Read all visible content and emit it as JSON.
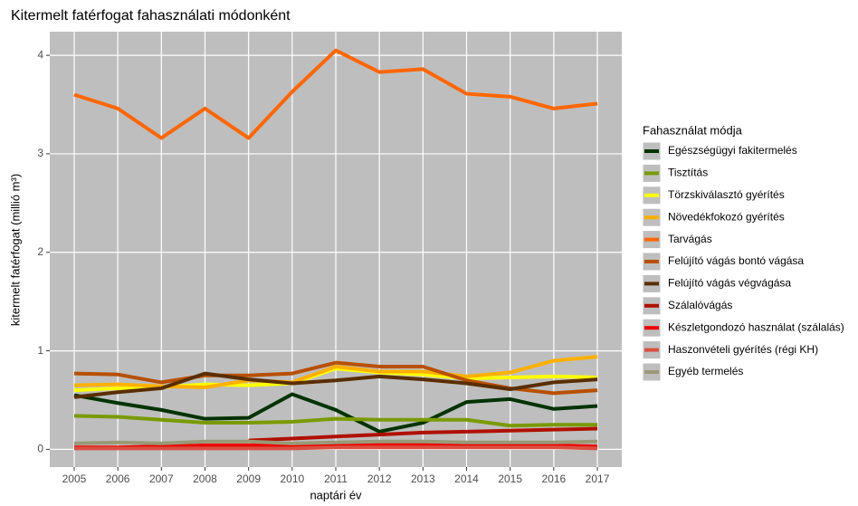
{
  "chart_data": {
    "type": "line",
    "title": "Kitermelt fatérfogat fahasználati módonként",
    "x_label": "naptári év",
    "y_label": "kitermelt fatérfogat (millió m³)",
    "legend_title": "Fahasználat módja",
    "legend_position": "right",
    "grid": true,
    "x": [
      2005,
      2006,
      2007,
      2008,
      2009,
      2010,
      2011,
      2012,
      2013,
      2014,
      2015,
      2016,
      2017
    ],
    "xlim": [
      2004.44,
      2017.56
    ],
    "xticks": [
      2005,
      2006,
      2007,
      2008,
      2009,
      2010,
      2011,
      2012,
      2013,
      2014,
      2015,
      2016,
      2017
    ],
    "ylim": [
      -0.18,
      4.24
    ],
    "yticks": [
      0,
      1,
      2,
      3,
      4
    ],
    "series": [
      {
        "name": "Egészségügyi fakitermelés",
        "color": "#003300",
        "values": [
          0.55,
          0.47,
          0.4,
          0.31,
          0.32,
          0.56,
          0.4,
          0.18,
          0.27,
          0.48,
          0.51,
          0.41,
          0.44
        ]
      },
      {
        "name": "Tisztítás",
        "color": "#7a9a01",
        "values": [
          0.34,
          0.33,
          0.3,
          0.27,
          0.27,
          0.28,
          0.31,
          0.3,
          0.3,
          0.3,
          0.24,
          0.25,
          0.25
        ]
      },
      {
        "name": "Törzskiválasztó gyérítés",
        "color": "#ffff00",
        "values": [
          0.6,
          0.62,
          0.63,
          0.66,
          0.65,
          0.67,
          0.82,
          0.78,
          0.76,
          0.72,
          0.73,
          0.74,
          0.73
        ]
      },
      {
        "name": "Növedékfokozó gyérítés",
        "color": "#ffb000",
        "values": [
          0.65,
          0.66,
          0.64,
          0.63,
          0.7,
          0.68,
          0.84,
          0.79,
          0.79,
          0.74,
          0.78,
          0.9,
          0.94
        ]
      },
      {
        "name": "Tarvágás",
        "color": "#ff6600",
        "values": [
          3.6,
          3.46,
          3.16,
          3.46,
          3.16,
          3.63,
          4.05,
          3.83,
          3.86,
          3.61,
          3.58,
          3.46,
          3.51
        ]
      },
      {
        "name": "Felújító vágás bontó vágása",
        "color": "#b85000",
        "values": [
          0.77,
          0.76,
          0.68,
          0.75,
          0.75,
          0.77,
          0.88,
          0.84,
          0.84,
          0.7,
          0.62,
          0.57,
          0.6
        ]
      },
      {
        "name": "Felújító vágás végvágása",
        "color": "#5a2e00",
        "values": [
          0.53,
          0.58,
          0.62,
          0.77,
          0.71,
          0.67,
          0.7,
          0.74,
          0.71,
          0.67,
          0.61,
          0.68,
          0.71
        ]
      },
      {
        "name": "Szálalóvágás",
        "color": "#b01000",
        "values": [
          null,
          null,
          null,
          null,
          0.09,
          0.11,
          0.13,
          0.15,
          0.17,
          0.18,
          0.19,
          0.2,
          0.21
        ]
      },
      {
        "name": "Készletgondozó használat (szálalás)",
        "color": "#ee0000",
        "values": [
          0.02,
          0.02,
          0.03,
          0.04,
          0.04,
          0.04,
          0.04,
          0.05,
          0.05,
          0.04,
          0.04,
          0.04,
          0.03
        ]
      },
      {
        "name": "Haszonvételi gyérítés (régi KH)",
        "color": "#d95040",
        "values": [
          0.01,
          0.01,
          0.01,
          0.01,
          0.01,
          0.01,
          0.02,
          0.02,
          0.02,
          0.02,
          0.02,
          0.02,
          0.01
        ]
      },
      {
        "name": "Egyéb termelés",
        "color": "#999977",
        "values": [
          0.06,
          0.07,
          0.06,
          0.08,
          0.08,
          0.06,
          0.07,
          0.08,
          0.08,
          0.07,
          0.07,
          0.07,
          0.08
        ]
      }
    ]
  }
}
